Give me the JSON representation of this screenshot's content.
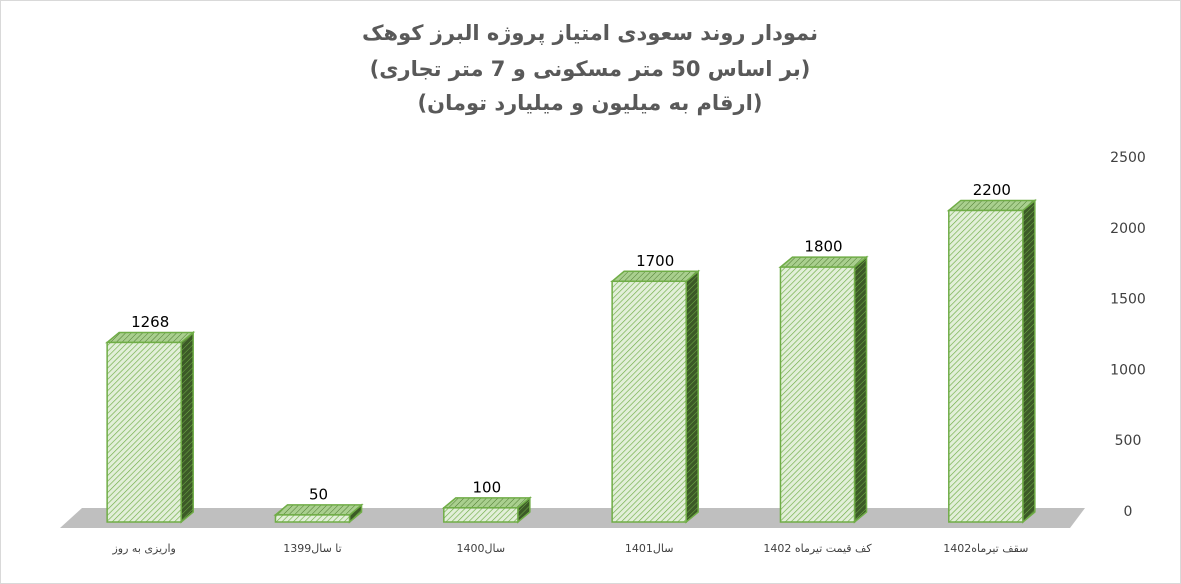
{
  "chart_data": {
    "type": "bar3d",
    "title": "نمودار روند سعودی امتیاز پروژه البرز کوهک",
    "subtitle": [
      "(بر اساس 50 متر مسکونی و 7 متر تجاری)",
      "(ارقام به میلیون و میلیارد تومان)"
    ],
    "categories": [
      "واریزی به روز",
      "تا سال1399",
      "سال1400",
      "سال1401",
      "کف قیمت تیرماه 1402",
      "سقف تیرماه1402"
    ],
    "values": [
      1268,
      50,
      100,
      1700,
      1800,
      2200
    ],
    "color": "#70ad47",
    "ylim": [
      0,
      2500
    ],
    "yticks": [
      0,
      500,
      1000,
      1500,
      2000,
      2500
    ],
    "axis_side": "right"
  }
}
